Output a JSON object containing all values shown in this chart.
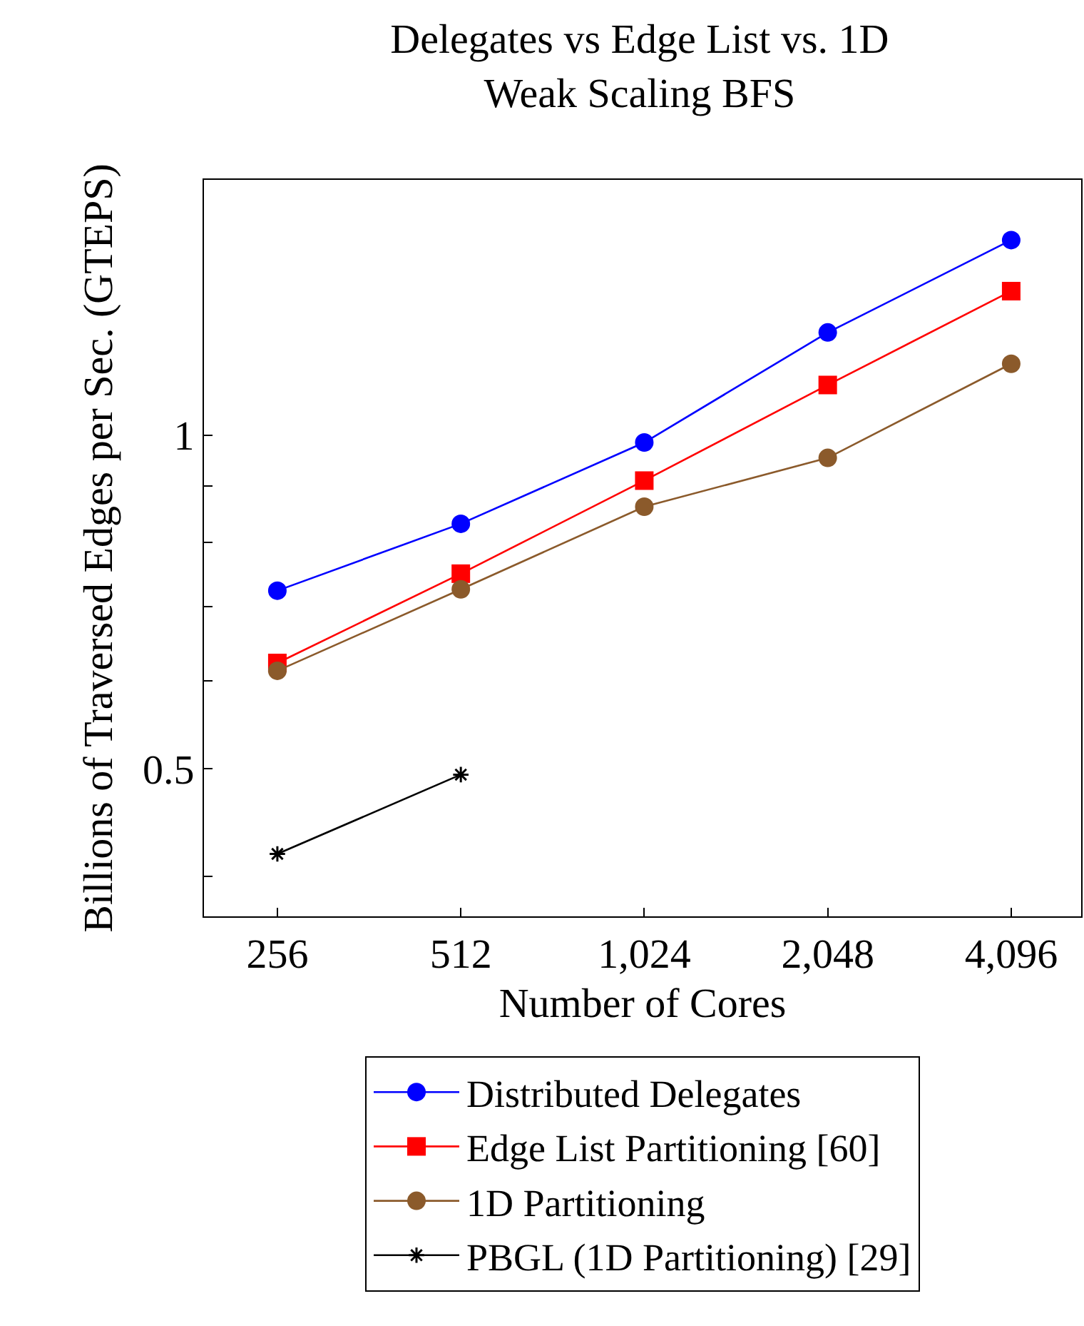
{
  "chart_data": {
    "type": "line",
    "title": "Delegates vs Edge List vs. 1D\nWeak Scaling BFS",
    "xlabel": "Number of Cores",
    "ylabel": "Billions of Traversed Edges per Sec. (GTEPS)",
    "log": "xy",
    "legend": "bottom",
    "xlim": [
      194,
      5335
    ],
    "xticks": [
      {
        "value": 256,
        "label": "256"
      },
      {
        "value": 512,
        "label": "512"
      },
      {
        "value": 1024,
        "label": "1,024"
      },
      {
        "value": 2048,
        "label": "2,048"
      },
      {
        "value": 4096,
        "label": "4,096"
      }
    ],
    "ylim": [
      0.368,
      1.7
    ],
    "yticks": [
      {
        "value": 0.4,
        "label": null
      },
      0.5,
      {
        "value": 0.6,
        "label": null
      },
      {
        "value": 0.7,
        "label": null
      },
      {
        "value": 0.8,
        "label": null
      },
      {
        "value": 0.9,
        "label": null
      },
      1
    ],
    "x": [
      256,
      512,
      1024,
      2048,
      4096
    ],
    "series": [
      {
        "name": "Distributed Delegates",
        "color": "#0000ff",
        "marker": "circle",
        "values": [
          0.724,
          0.832,
          0.985,
          1.238,
          1.5
        ]
      },
      {
        "name": "Edge List Partitioning [60]",
        "color": "#ff0000",
        "marker": "square",
        "values": [
          0.623,
          0.75,
          0.91,
          1.11,
          1.349
        ]
      },
      {
        "name": "1D Partitioning",
        "color": "#8b5a2b",
        "marker": "circle",
        "values": [
          0.613,
          0.726,
          0.862,
          0.954,
          1.16
        ]
      },
      {
        "name": "PBGL (1D Partitioning) [29]",
        "color": "#000000",
        "marker": "cross",
        "x": [
          256,
          512
        ],
        "values": [
          0.419,
          0.494
        ]
      }
    ]
  }
}
